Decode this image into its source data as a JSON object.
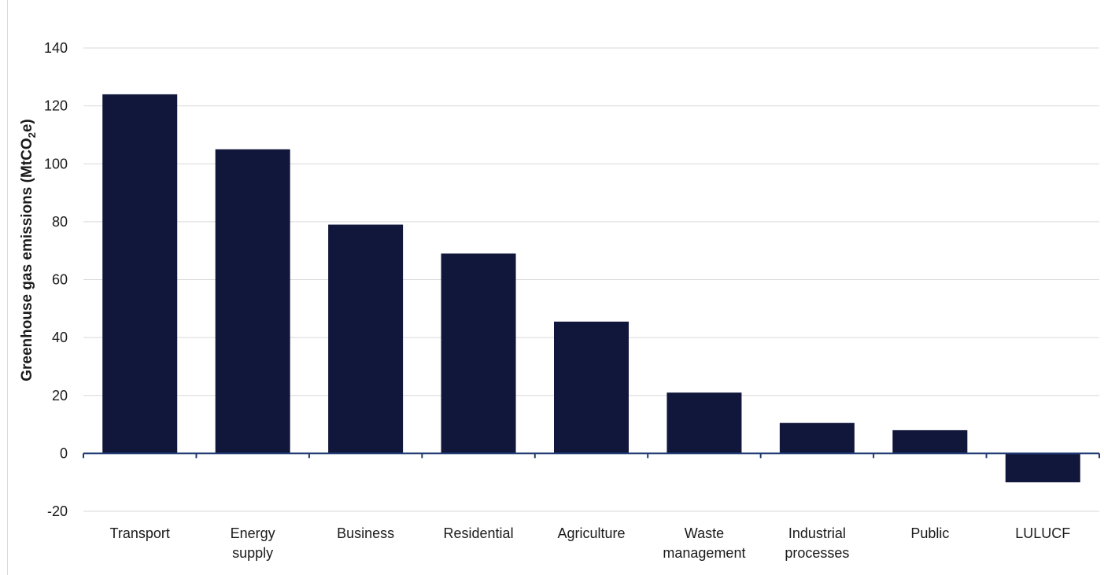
{
  "chart_data": {
    "type": "bar",
    "categories": [
      [
        "Transport"
      ],
      [
        "Energy",
        "supply"
      ],
      [
        "Business"
      ],
      [
        "Residential"
      ],
      [
        "Agriculture"
      ],
      [
        "Waste",
        "management"
      ],
      [
        "Industrial",
        "processes"
      ],
      [
        "Public"
      ],
      [
        "LULUCF"
      ]
    ],
    "values": [
      124,
      105,
      79,
      69,
      45.5,
      21,
      10.5,
      8,
      -10
    ],
    "ylabel": {
      "main": "Greenhouse gas emissions (MtCO",
      "sub": "2",
      "end": "e)"
    },
    "ylim": [
      -20,
      140
    ],
    "yticks": [
      -20,
      0,
      20,
      40,
      60,
      80,
      100,
      120,
      140
    ],
    "grid": true,
    "bar_color": "#11163b",
    "axis_color": "#1f3b73",
    "grid_color": "#d9d9d9"
  }
}
